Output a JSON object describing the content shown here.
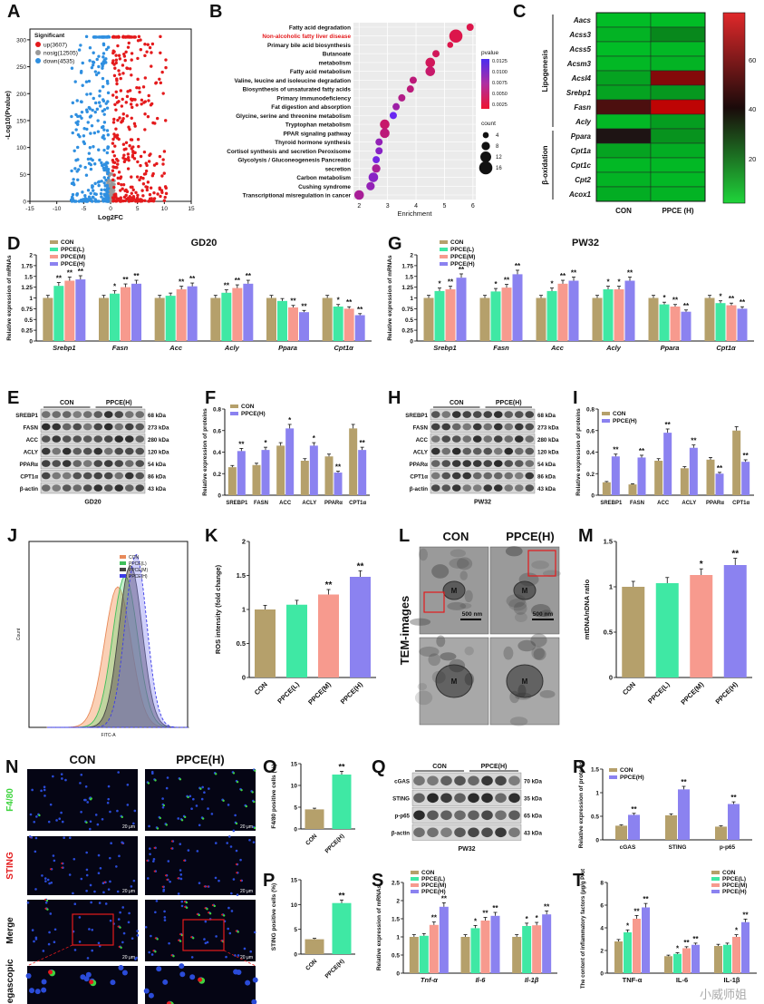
{
  "labels": [
    "A",
    "B",
    "C",
    "D",
    "E",
    "F",
    "G",
    "H",
    "I",
    "J",
    "K",
    "L",
    "M",
    "N",
    "O",
    "P",
    "Q",
    "R",
    "S",
    "T"
  ],
  "colors": {
    "con": "#b5a06b",
    "low": "#3fe8a4",
    "mid": "#f79a8e",
    "high": "#8b82f0",
    "up": "#e41a1c",
    "down": "#2f8fe0",
    "nosig": "#999999"
  },
  "watermark": "小威师姐",
  "panel_text": {
    "a": {
      "legend_title": "Significant",
      "up": "up(3607)",
      "nosig": "nosig(12505)",
      "down": "down(4535)",
      "xlabel": "Log2FC",
      "ylabel": "-Log10(Pvalue)"
    },
    "b": {
      "xlabel": "Enrichment",
      "pvalue_title": "pvalue",
      "count_title": "count"
    },
    "c": {
      "group_lipo": "Lipogenesis",
      "group_box": "β-oxidation",
      "cols": [
        "CON",
        "PPCE (H)"
      ]
    },
    "d": {
      "title": "GD20",
      "ylabel": "Relative expression of mRNAs",
      "legend": [
        "CON",
        "PPCE(L)",
        "PPCE(M)",
        "PPCE(H)"
      ]
    },
    "g": {
      "title": "PW32",
      "ylabel": "Relative expression of mRNAs",
      "legend": [
        "CON",
        "PPCE(L)",
        "PPCE(M)",
        "PPCE(H)"
      ]
    },
    "e": {
      "group1": "CON",
      "group2": "PPCE(H)",
      "caption": "GD20",
      "bands": [
        "SREBP1",
        "FASN",
        "ACC",
        "ACLY",
        "PPARα",
        "CPT1α",
        "β-actin"
      ],
      "kda": [
        "68 kDa",
        "273 kDa",
        "280 kDa",
        "120 kDa",
        "54 kDa",
        "86 kDa",
        "43 kDa"
      ]
    },
    "h": {
      "group1": "CON",
      "group2": "PPCE(H)",
      "caption": "PW32",
      "bands": [
        "SREBP1",
        "FASN",
        "ACC",
        "ACLY",
        "PPARα",
        "CPT1α",
        "β-actin"
      ],
      "kda": [
        "68 kDa",
        "273 kDa",
        "280 kDa",
        "120 kDa",
        "54 kDa",
        "86 kDa",
        "43 kDa"
      ]
    },
    "f": {
      "ylabel": "Relative expression of proteins",
      "legend": [
        "CON",
        "PPCE(H)"
      ]
    },
    "i": {
      "ylabel": "Relative expression of proteins",
      "legend": [
        "CON",
        "PPCE(H)"
      ]
    },
    "j": {
      "legend": [
        "CON",
        "PPCE(L)",
        "PPCE(M)",
        "PPCE(H)"
      ],
      "xlabel": "FITC-A",
      "ylabel": "Count"
    },
    "k": {
      "ylabel": "ROS intensity (fold change)"
    },
    "l": {
      "con": "CON",
      "ppce": "PPCE(H)",
      "side": "TEM-images",
      "scale": "500 nm",
      "m": "M"
    },
    "m": {
      "ylabel": "mtDNA/nDNA ratio"
    },
    "n": {
      "con": "CON",
      "ppce": "PPCE(H)",
      "rows": [
        "F4/80",
        "STING",
        "Merge",
        "Megascopic"
      ],
      "scale": "20 μm"
    },
    "o": {
      "ylabel": "F4/80 positive cells (%)"
    },
    "p": {
      "ylabel": "STING positive cells (%)"
    },
    "q": {
      "group1": "CON",
      "group2": "PPCE(H)",
      "caption": "PW32",
      "bands": [
        "cGAS",
        "STING",
        "p-p65",
        "β-actin"
      ],
      "kda": [
        "70 kDa",
        "35 kDa",
        "65 kDa",
        "43 kDa"
      ]
    },
    "r": {
      "ylabel": "Relative expression of proteins",
      "legend": [
        "CON",
        "PPCE(H)"
      ]
    },
    "s": {
      "ylabel": "Relative expression of mRNAs",
      "legend": [
        "CON",
        "PPCE(L)",
        "PPCE(M)",
        "PPCE(H)"
      ]
    },
    "t": {
      "ylabel": "The content of inflammatory factors (μg/g Prot)",
      "legend": [
        "CON",
        "PPCE(L)",
        "PPCE(M)",
        "PPCE(H)"
      ]
    }
  },
  "chart_data": [
    {
      "id": "A",
      "type": "scatter",
      "title": "",
      "xlabel": "Log2FC",
      "ylabel": "-Log10(Pvalue)",
      "xlim": [
        -15,
        15
      ],
      "ylim": [
        0,
        320
      ],
      "xticks": [
        -15,
        -10,
        -5,
        0,
        5,
        10,
        15
      ],
      "yticks": [
        0,
        50,
        100,
        150,
        200,
        250,
        300
      ],
      "series": [
        {
          "name": "up(3607)"
        },
        {
          "name": "nosig(12505)"
        },
        {
          "name": "down(4535)"
        }
      ]
    },
    {
      "id": "B",
      "type": "scatter",
      "xlabel": "Enrichment",
      "xlim": [
        1.8,
        6.1
      ],
      "xticks": [
        2,
        3,
        4,
        5,
        6
      ],
      "categories": [
        "Fatty acid degradation",
        "Non-alcoholic fatty liver disease",
        "Primary bile acid biosynthesis",
        "Butanoate",
        "metabolism",
        "Fatty acid metabolism",
        "Valine, leucine and isoleucine degradation",
        "Biosynthesis of unsaturated fatty acids",
        "Primary immunodeficiency",
        "Fat digestion and absorption",
        "Glycine, serine and threonine metabolism",
        "Tryptophan metabolism",
        "PPAR signaling pathway",
        "Thyroid hormone synthesis",
        "Cortisol synthesis and secretion Peroxisome",
        "Glycolysis / Gluconeogenesis Pancreatic",
        "secretion",
        "Carbon metabolism",
        "Cushing syndrome",
        "Transcriptional misregulation in cancer"
      ],
      "x": [
        5.9,
        5.4,
        5.2,
        4.7,
        4.5,
        4.5,
        3.9,
        3.8,
        3.5,
        3.3,
        3.2,
        2.9,
        2.9,
        2.7,
        2.7,
        2.6,
        2.6,
        2.5,
        2.4,
        2.0
      ],
      "count": [
        6,
        16,
        4,
        6,
        10,
        10,
        6,
        6,
        6,
        6,
        6,
        10,
        10,
        6,
        6,
        6,
        8,
        10,
        8,
        10
      ],
      "pvalue": [
        0.001,
        0.001,
        0.001,
        0.002,
        0.002,
        0.003,
        0.004,
        0.004,
        0.005,
        0.007,
        0.012,
        0.003,
        0.004,
        0.008,
        0.009,
        0.011,
        0.006,
        0.009,
        0.008,
        0.006
      ],
      "pvalue_ticks": [
        0.0125,
        0.01,
        0.0075,
        0.005,
        0.0025
      ],
      "count_ticks": [
        4,
        8,
        12,
        16
      ]
    },
    {
      "id": "C",
      "type": "heatmap",
      "rows": [
        "Aacs",
        "Acss3",
        "Acss5",
        "Acsm3",
        "Acsl4",
        "Srebp1",
        "Fasn",
        "Acly",
        "Ppara",
        "Cpt1a",
        "Cpt1c",
        "Cpt2",
        "Acox1"
      ],
      "cols": [
        "CON",
        "PPCE (H)"
      ],
      "values": [
        [
          12,
          12
        ],
        [
          14,
          22
        ],
        [
          12,
          13
        ],
        [
          13,
          14
        ],
        [
          17,
          58
        ],
        [
          17,
          19
        ],
        [
          48,
          68
        ],
        [
          13,
          18
        ],
        [
          40,
          20
        ],
        [
          17,
          15
        ],
        [
          13,
          13
        ],
        [
          14,
          13
        ],
        [
          15,
          14
        ]
      ],
      "scale_ticks": [
        20,
        40,
        60
      ]
    },
    {
      "id": "D",
      "type": "bar",
      "title": "GD20",
      "categories": [
        "Srebp1",
        "Fasn",
        "Acc",
        "Acly",
        "Ppara",
        "Cpt1α"
      ],
      "ylim": [
        0,
        2.0
      ],
      "yticks": [
        0,
        0.25,
        0.5,
        0.75,
        1.0,
        1.25,
        1.5,
        1.75,
        2.0
      ],
      "series": [
        {
          "name": "CON",
          "values": [
            1.0,
            1.0,
            1.0,
            1.0,
            1.0,
            1.0
          ]
        },
        {
          "name": "PPCE(L)",
          "values": [
            1.28,
            1.1,
            1.05,
            1.12,
            0.93,
            0.8
          ]
        },
        {
          "name": "PPCE(M)",
          "values": [
            1.4,
            1.25,
            1.2,
            1.23,
            0.78,
            0.75
          ]
        },
        {
          "name": "PPCE(H)",
          "values": [
            1.43,
            1.33,
            1.27,
            1.33,
            0.67,
            0.6
          ]
        }
      ],
      "sig": [
        [
          "",
          "**",
          "**",
          "**"
        ],
        [
          "",
          "*",
          "**",
          "**"
        ],
        [
          "",
          "",
          "**",
          "**"
        ],
        [
          "",
          "**",
          "**",
          "**"
        ],
        [
          "",
          "",
          "**",
          "**"
        ],
        [
          "",
          "*",
          "**",
          "**"
        ]
      ]
    },
    {
      "id": "G",
      "type": "bar",
      "title": "PW32",
      "categories": [
        "Srebp1",
        "Fasn",
        "Acc",
        "Acly",
        "Ppara",
        "Cpt1α"
      ],
      "ylim": [
        0,
        2.0
      ],
      "yticks": [
        0,
        0.25,
        0.5,
        0.75,
        1.0,
        1.25,
        1.5,
        1.75,
        2.0
      ],
      "series": [
        {
          "name": "CON",
          "values": [
            1.0,
            1.0,
            1.0,
            1.0,
            1.0,
            1.0
          ]
        },
        {
          "name": "PPCE(L)",
          "values": [
            1.16,
            1.15,
            1.16,
            1.2,
            0.85,
            0.88
          ]
        },
        {
          "name": "PPCE(M)",
          "values": [
            1.2,
            1.24,
            1.33,
            1.2,
            0.8,
            0.83
          ]
        },
        {
          "name": "PPCE(H)",
          "values": [
            1.47,
            1.55,
            1.4,
            1.4,
            0.68,
            0.75
          ]
        }
      ],
      "sig": [
        [
          "",
          "*",
          "**",
          "**"
        ],
        [
          "",
          "*",
          "**",
          "**"
        ],
        [
          "",
          "*",
          "**",
          "**"
        ],
        [
          "",
          "*",
          "*",
          "**"
        ],
        [
          "",
          "*",
          "**",
          "**"
        ],
        [
          "",
          "*",
          "**",
          "**"
        ]
      ]
    },
    {
      "id": "F",
      "type": "bar",
      "categories": [
        "SREBP1",
        "FASN",
        "ACC",
        "ACLY",
        "PPARα",
        "CPT1α"
      ],
      "ylim": [
        0,
        0.8
      ],
      "yticks": [
        0,
        0.2,
        0.4,
        0.6,
        0.8
      ],
      "series": [
        {
          "name": "CON",
          "values": [
            0.26,
            0.28,
            0.46,
            0.32,
            0.36,
            0.62
          ]
        },
        {
          "name": "PPCE(H)",
          "values": [
            0.41,
            0.42,
            0.62,
            0.46,
            0.21,
            0.42
          ]
        }
      ],
      "sig": [
        [
          "",
          "**"
        ],
        [
          "",
          "*"
        ],
        [
          "",
          "*"
        ],
        [
          "",
          "*"
        ],
        [
          "",
          "**"
        ],
        [
          "",
          "**"
        ]
      ]
    },
    {
      "id": "I",
      "type": "bar",
      "categories": [
        "SREBP1",
        "FASN",
        "ACC",
        "ACLY",
        "PPARα",
        "CPT1α"
      ],
      "ylim": [
        0,
        0.8
      ],
      "yticks": [
        0,
        0.2,
        0.4,
        0.6,
        0.8
      ],
      "series": [
        {
          "name": "CON",
          "values": [
            0.12,
            0.1,
            0.32,
            0.25,
            0.33,
            0.6
          ]
        },
        {
          "name": "PPCE(H)",
          "values": [
            0.36,
            0.35,
            0.58,
            0.44,
            0.2,
            0.31
          ]
        }
      ],
      "sig": [
        [
          "",
          "**"
        ],
        [
          "",
          "**"
        ],
        [
          "",
          "**"
        ],
        [
          "",
          "**"
        ],
        [
          "",
          "**"
        ],
        [
          "",
          "**"
        ]
      ]
    },
    {
      "id": "J",
      "type": "area",
      "title": "",
      "series": [
        {
          "name": "CON"
        },
        {
          "name": "PPCE(L)"
        },
        {
          "name": "PPCE(M)"
        },
        {
          "name": "PPCE(H)"
        }
      ]
    },
    {
      "id": "K",
      "type": "bar",
      "categories": [
        "CON",
        "PPCE(L)",
        "PPCE(M)",
        "PPCE(H)"
      ],
      "ylim": [
        0,
        2.0
      ],
      "yticks": [
        0,
        0.5,
        1.0,
        1.5,
        2.0
      ],
      "values": [
        1.0,
        1.07,
        1.22,
        1.48
      ],
      "sig": [
        "",
        "",
        "**",
        "**"
      ]
    },
    {
      "id": "M",
      "type": "bar",
      "categories": [
        "CON",
        "PPCE(L)",
        "PPCE(M)",
        "PPCE(H)"
      ],
      "ylim": [
        0,
        1.5
      ],
      "yticks": [
        0,
        0.5,
        1.0,
        1.5
      ],
      "values": [
        1.0,
        1.04,
        1.13,
        1.24
      ],
      "sig": [
        "",
        "",
        "*",
        "**"
      ]
    },
    {
      "id": "O",
      "type": "bar",
      "categories": [
        "CON",
        "PPCE(H)"
      ],
      "ylim": [
        0,
        15
      ],
      "yticks": [
        0,
        5,
        10,
        15
      ],
      "values": [
        4.5,
        12.5
      ],
      "sig": [
        "",
        "**"
      ]
    },
    {
      "id": "P",
      "type": "bar",
      "categories": [
        "CON",
        "PPCE(H)"
      ],
      "ylim": [
        0,
        15
      ],
      "yticks": [
        0,
        5,
        10,
        15
      ],
      "values": [
        3.0,
        10.3
      ],
      "sig": [
        "",
        "**"
      ]
    },
    {
      "id": "R",
      "type": "bar",
      "categories": [
        "cGAS",
        "STING",
        "p-p65"
      ],
      "ylim": [
        0,
        1.5
      ],
      "yticks": [
        0,
        0.5,
        1.0,
        1.5
      ],
      "series": [
        {
          "name": "CON",
          "values": [
            0.3,
            0.52,
            0.28
          ]
        },
        {
          "name": "PPCE(H)",
          "values": [
            0.53,
            1.07,
            0.76
          ]
        }
      ],
      "sig": [
        [
          "",
          "**"
        ],
        [
          "",
          "**"
        ],
        [
          "",
          "**"
        ]
      ]
    },
    {
      "id": "S",
      "type": "bar",
      "categories": [
        "Tnf-α",
        "Il-6",
        "Il-1β"
      ],
      "ylim": [
        0,
        2.5
      ],
      "yticks": [
        0,
        0.5,
        1.0,
        1.5,
        2.0,
        2.5
      ],
      "series": [
        {
          "name": "CON",
          "values": [
            1.0,
            1.0,
            1.0
          ]
        },
        {
          "name": "PPCE(L)",
          "values": [
            1.03,
            1.24,
            1.3
          ]
        },
        {
          "name": "PPCE(M)",
          "values": [
            1.33,
            1.45,
            1.32
          ]
        },
        {
          "name": "PPCE(H)",
          "values": [
            1.83,
            1.58,
            1.62
          ]
        }
      ],
      "sig": [
        [
          "",
          "",
          "**",
          "**"
        ],
        [
          "",
          "*",
          "**",
          "**"
        ],
        [
          "",
          "*",
          "*",
          "**"
        ]
      ]
    },
    {
      "id": "T",
      "type": "bar",
      "categories": [
        "TNF-α",
        "IL-6",
        "IL-1β"
      ],
      "ylim": [
        0,
        8
      ],
      "yticks": [
        0,
        2,
        4,
        6,
        8
      ],
      "series": [
        {
          "name": "CON",
          "values": [
            2.8,
            1.5,
            2.4
          ]
        },
        {
          "name": "PPCE(L)",
          "values": [
            3.6,
            1.7,
            2.5
          ]
        },
        {
          "name": "PPCE(M)",
          "values": [
            4.8,
            2.2,
            3.2
          ]
        },
        {
          "name": "PPCE(H)",
          "values": [
            5.8,
            2.5,
            4.5
          ]
        }
      ],
      "sig": [
        [
          "",
          "*",
          "**",
          "**"
        ],
        [
          "",
          "*",
          "**",
          "**"
        ],
        [
          "",
          "",
          "*",
          "**"
        ]
      ]
    }
  ]
}
